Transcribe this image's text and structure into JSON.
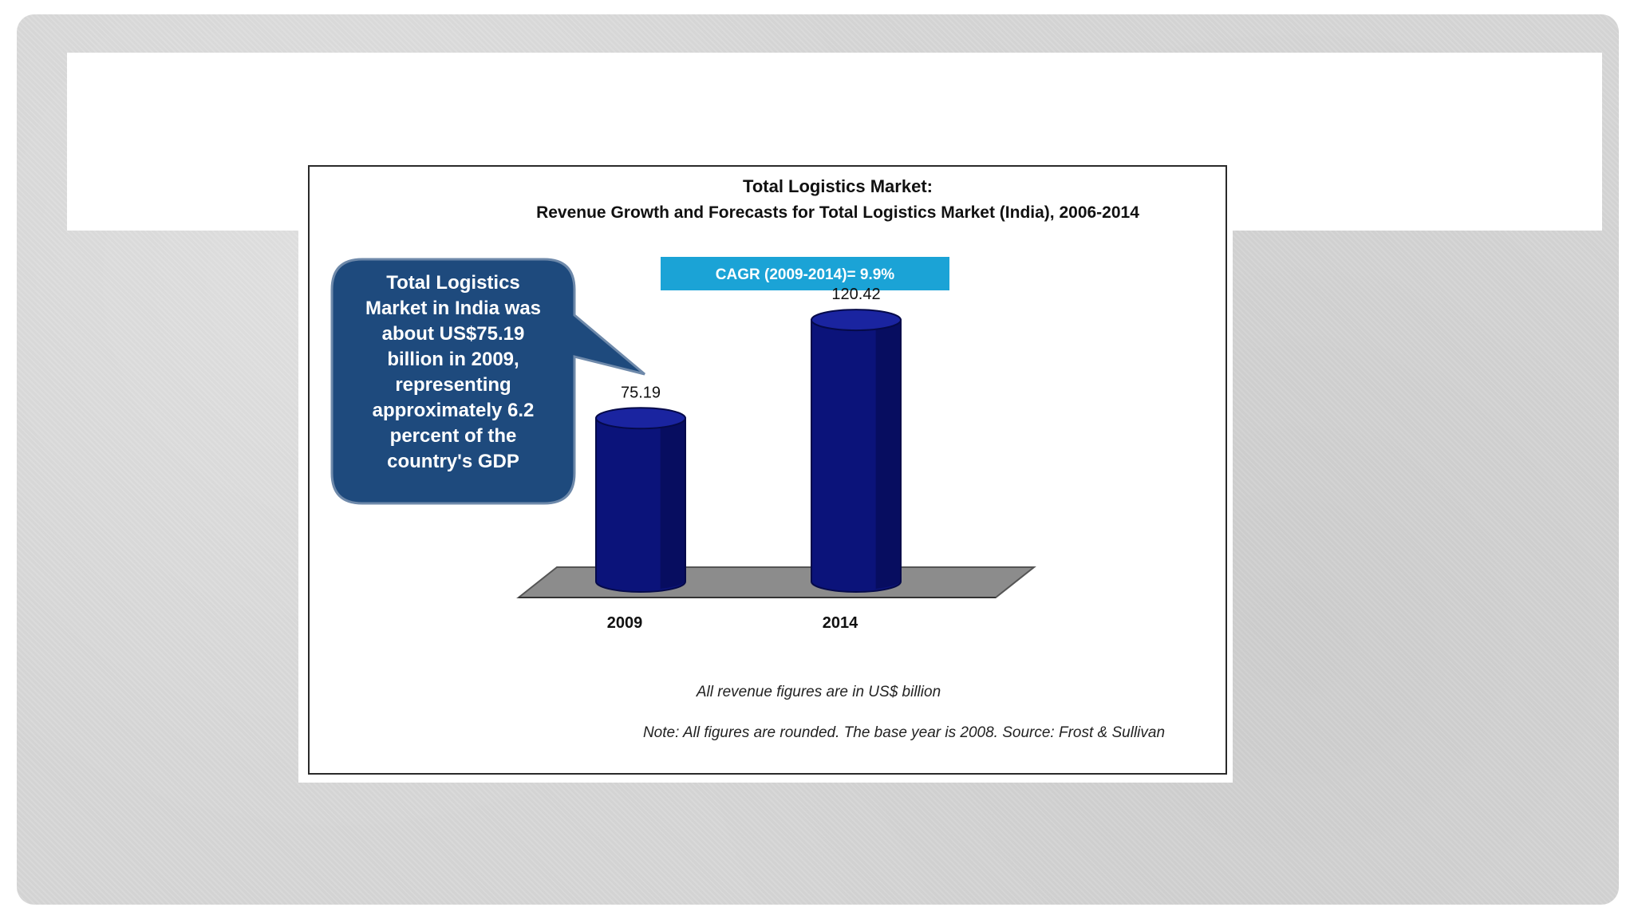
{
  "chart_data": {
    "type": "bar",
    "title": "Total Logistics Market:",
    "subtitle": "Revenue Growth and Forecasts for Total Logistics Market (India), 2006-2014",
    "categories": [
      "2009",
      "2014"
    ],
    "values": [
      75.19,
      120.42
    ],
    "data_labels": [
      "75.19",
      "120.42"
    ],
    "cagr_label": "CAGR (2009-2014)= 9.9%",
    "callout_text": [
      "Total Logistics",
      "Market in India was",
      "about US$75.19",
      "billion in 2009,",
      "representing",
      "approximately 6.2",
      "percent of  the",
      "country's GDP"
    ],
    "units_note": "All revenue figures are in US$ billion",
    "footnote": "Note: All figures are rounded. The base year is 2008. Source: Frost & Sullivan",
    "xlabel": "",
    "ylabel": "",
    "ylim": [
      0,
      130
    ],
    "grid": false,
    "legend": "none",
    "colors": {
      "bar": "#0b137a",
      "bar_dark": "#050a4a",
      "floor": "#8c8c8c",
      "callout": "#1e4a7d",
      "cagr_box": "#1ba3d6"
    }
  }
}
